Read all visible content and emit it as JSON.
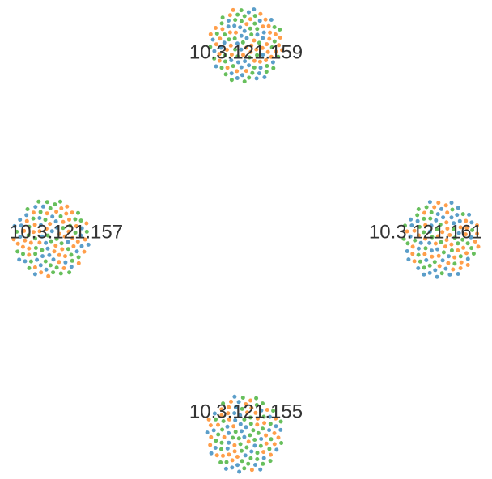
{
  "palette": {
    "orange": "#ff9e4a",
    "green": "#67bf5c",
    "blue": "#5b9ec9"
  },
  "clusters": [
    {
      "id": "top",
      "label": "10.3.121.159"
    },
    {
      "id": "left",
      "label": "10.3.121.157"
    },
    {
      "id": "right",
      "label": "10.3.121.161"
    },
    {
      "id": "bottom",
      "label": "10.3.121.155"
    }
  ]
}
